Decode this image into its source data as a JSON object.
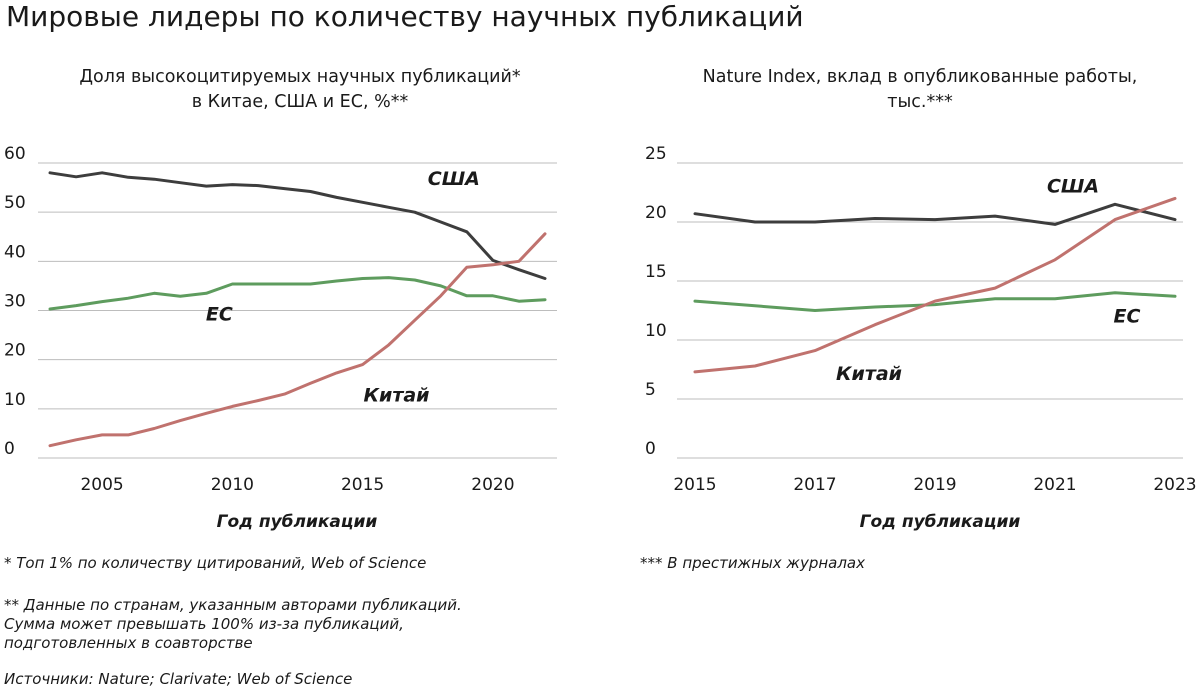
{
  "title": "Мировые лидеры по количеству научных публикаций",
  "chart_data": [
    {
      "type": "line",
      "title_line1": "Доля высокоцитируемых научных публикаций*",
      "title_line2": "в Китае, США и ЕС, %**",
      "xlabel": "Год публикации",
      "ylabel": "",
      "xlim": [
        2003,
        2022
      ],
      "ylim": [
        0,
        60
      ],
      "xticks": [
        2005,
        2010,
        2015,
        2020
      ],
      "yticks": [
        0,
        10,
        20,
        30,
        40,
        50,
        60
      ],
      "grid": true,
      "series": [
        {
          "name": "США",
          "color": "#3d3d3d",
          "x": [
            2003,
            2004,
            2005,
            2006,
            2007,
            2008,
            2009,
            2010,
            2011,
            2012,
            2013,
            2014,
            2015,
            2016,
            2017,
            2018,
            2019,
            2020,
            2021,
            2022
          ],
          "values": [
            58,
            57.2,
            58,
            57.1,
            56.7,
            56,
            55.3,
            55.6,
            55.4,
            54.8,
            54.2,
            53,
            52,
            51,
            50,
            48,
            46,
            40.2,
            38.3,
            36.5
          ]
        },
        {
          "name": "ЕС",
          "color": "#5e9c5e",
          "x": [
            2003,
            2004,
            2005,
            2006,
            2007,
            2008,
            2009,
            2010,
            2011,
            2012,
            2013,
            2014,
            2015,
            2016,
            2017,
            2018,
            2019,
            2020,
            2021,
            2022
          ],
          "values": [
            30.3,
            31,
            31.8,
            32.5,
            33.5,
            32.9,
            33.5,
            35.4,
            35.4,
            35.4,
            35.4,
            36,
            36.5,
            36.7,
            36.2,
            35,
            33,
            33,
            31.9,
            32.2
          ]
        },
        {
          "name": "Китай",
          "color": "#c0726e",
          "x": [
            2003,
            2004,
            2005,
            2006,
            2007,
            2008,
            2009,
            2010,
            2011,
            2012,
            2013,
            2014,
            2015,
            2016,
            2017,
            2018,
            2019,
            2020,
            2021,
            2022
          ],
          "values": [
            2.5,
            3.7,
            4.7,
            4.7,
            6,
            7.6,
            9.1,
            10.5,
            11.7,
            13,
            15.2,
            17.3,
            19,
            23,
            28,
            33,
            38.8,
            39.3,
            40,
            45.6
          ]
        }
      ],
      "labels": [
        {
          "text": "США",
          "x": 2018.5,
          "y": 55.5
        },
        {
          "text": "ЕС",
          "x": 2009.5,
          "y": 28
        },
        {
          "text": "Китай",
          "x": 2016.3,
          "y": 11.5
        }
      ]
    },
    {
      "type": "line",
      "title_line1": "Nature Index, вклад в опубликованные работы,",
      "title_line2": "тыс.***",
      "xlabel": "Год публикации",
      "ylabel": "",
      "xlim": [
        2015,
        2023
      ],
      "ylim": [
        0,
        25
      ],
      "xticks": [
        2015,
        2017,
        2019,
        2021,
        2023
      ],
      "yticks": [
        0,
        5,
        10,
        15,
        20,
        25
      ],
      "grid": true,
      "series": [
        {
          "name": "США",
          "color": "#3d3d3d",
          "x": [
            2015,
            2016,
            2017,
            2018,
            2019,
            2020,
            2021,
            2022,
            2023
          ],
          "values": [
            20.7,
            20,
            20,
            20.3,
            20.2,
            20.5,
            19.8,
            21.5,
            20.2
          ]
        },
        {
          "name": "ЕС",
          "color": "#5e9c5e",
          "x": [
            2015,
            2016,
            2017,
            2018,
            2019,
            2020,
            2021,
            2022,
            2023
          ],
          "values": [
            13.3,
            12.9,
            12.5,
            12.8,
            13,
            13.5,
            13.5,
            14,
            13.7
          ]
        },
        {
          "name": "Китай",
          "color": "#c0726e",
          "x": [
            2015,
            2016,
            2017,
            2018,
            2019,
            2020,
            2021,
            2022,
            2023
          ],
          "values": [
            7.3,
            7.8,
            9.1,
            11.3,
            13.3,
            14.4,
            16.8,
            20.2,
            22
          ]
        }
      ],
      "labels": [
        {
          "text": "США",
          "x": 2021.3,
          "y": 22.5
        },
        {
          "text": "ЕС",
          "x": 2022.2,
          "y": 11.5
        },
        {
          "text": "Китай",
          "x": 2017.9,
          "y": 6.6
        }
      ]
    }
  ],
  "notes": {
    "n1": "* Топ 1% по количеству цитирований, Web of Science",
    "n2_line1": "** Данные по странам, указанным авторами публикаций.",
    "n2_line2": "Сумма может превышать 100% из-за публикаций,",
    "n2_line3": "подготовленных в соавторстве",
    "n3": "Источники: Nature; Clarivate; Web of Science",
    "n4": "*** В престижных журналах"
  }
}
